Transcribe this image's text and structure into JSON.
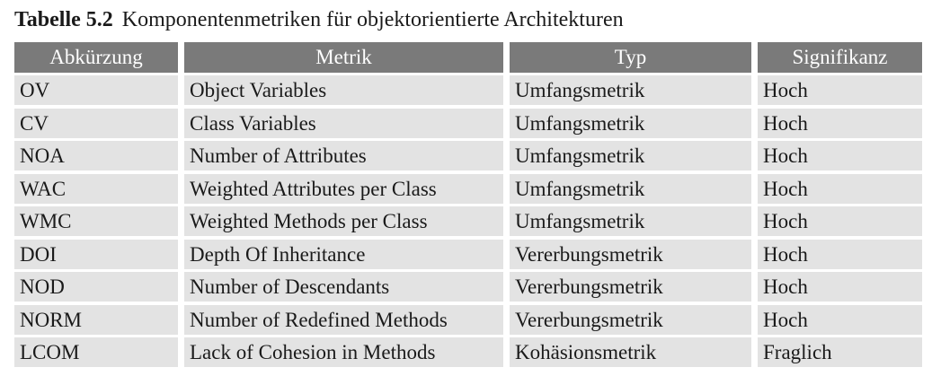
{
  "caption": {
    "label": "Tabelle 5.2",
    "title": "Komponentenmetriken für objektorientierte Architekturen"
  },
  "table": {
    "headers": [
      "Abkürzung",
      "Metrik",
      "Typ",
      "Signifikanz"
    ],
    "rows": [
      [
        "OV",
        "Object Variables",
        "Umfangsmetrik",
        "Hoch"
      ],
      [
        "CV",
        "Class Variables",
        "Umfangsmetrik",
        "Hoch"
      ],
      [
        "NOA",
        "Number of Attributes",
        "Umfangsmetrik",
        "Hoch"
      ],
      [
        "WAC",
        "Weighted Attributes per Class",
        "Umfangsmetrik",
        "Hoch"
      ],
      [
        "WMC",
        "Weighted Methods per Class",
        "Umfangsmetrik",
        "Hoch"
      ],
      [
        "DOI",
        "Depth Of Inheritance",
        "Vererbungsmetrik",
        "Hoch"
      ],
      [
        "NOD",
        "Number of Descendants",
        "Vererbungsmetrik",
        "Hoch"
      ],
      [
        "NORM",
        "Number of Redefined Methods",
        "Vererbungsmetrik",
        "Hoch"
      ],
      [
        "LCOM",
        "Lack of Cohesion in Methods",
        "Kohäsionsmetrik",
        "Fraglich"
      ]
    ]
  },
  "colors": {
    "header_bg": "#7a7a7a",
    "header_text": "#ffffff",
    "cell_bg": "#e3e3e3",
    "text": "#1a1a1a"
  }
}
